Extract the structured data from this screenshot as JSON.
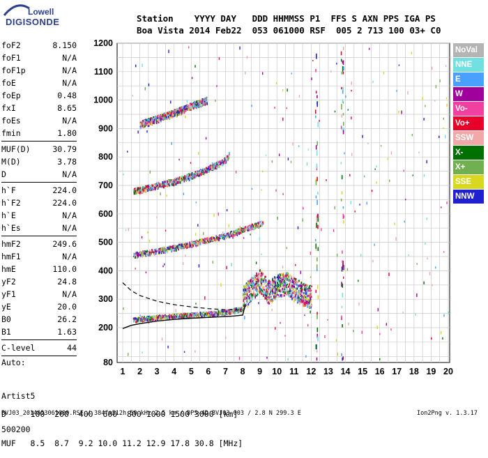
{
  "logo": {
    "line1": "Lowell",
    "line2": "DIGISONDE"
  },
  "header": {
    "row1": "Station    YYYY DAY   DDD HHMMSS P1  FFS S AXN PPS IGA PS",
    "row2": "Boa Vista 2014 Feb22  053 061000 RSF  005 2 713 100 03+ C0"
  },
  "params": [
    {
      "name": "foF2",
      "value": "8.150"
    },
    {
      "name": "foF1",
      "value": "N/A"
    },
    {
      "name": "foF1p",
      "value": "N/A"
    },
    {
      "name": "foE",
      "value": "N/A"
    },
    {
      "name": "foEp",
      "value": "0.48"
    },
    {
      "name": "fxI",
      "value": "8.65"
    },
    {
      "name": "foEs",
      "value": "N/A"
    },
    {
      "name": "fmin",
      "value": "1.80"
    },
    {
      "sep": true
    },
    {
      "name": "MUF(D)",
      "value": "30.79"
    },
    {
      "name": "M(D)",
      "value": "3.78"
    },
    {
      "name": "D",
      "value": "N/A"
    },
    {
      "sep": true
    },
    {
      "name": "h`F",
      "value": "224.0"
    },
    {
      "name": "h`F2",
      "value": "224.0"
    },
    {
      "name": "h`E",
      "value": "N/A"
    },
    {
      "name": "h`Es",
      "value": "N/A"
    },
    {
      "sep": true
    },
    {
      "name": "hmF2",
      "value": "249.6"
    },
    {
      "name": "hmF1",
      "value": "N/A"
    },
    {
      "name": "hmE",
      "value": "110.0"
    },
    {
      "name": "yF2",
      "value": "24.8"
    },
    {
      "name": "yF1",
      "value": "N/A"
    },
    {
      "name": "yE",
      "value": "20.0"
    },
    {
      "name": "B0",
      "value": "26.2"
    },
    {
      "name": "B1",
      "value": "1.63"
    },
    {
      "sep": true
    },
    {
      "name": "C-level",
      "value": "44"
    },
    {
      "sep": true
    }
  ],
  "autoscaling": {
    "line1": "Auto:",
    "line2": "Artist5",
    "line3": "500200"
  },
  "table": {
    "row1": "D     100  200  400  600  800 1000 1500 3000 [km]",
    "row2": "MUF   8.5  8.7  9.2 10.0 11.2 12.9 17.8 30.8 [MHz]"
  },
  "footer": {
    "left": "BVJ03_2014053061000.RSF / 384fx512h 50 kHz 2.5 km / DPS-4D BVJ03 003 / 2.8 N 299.3 E",
    "right": "Ion2Png v. 1.3.17"
  },
  "legend": [
    {
      "label": "NoVal",
      "color": "#b4b4b4"
    },
    {
      "label": "NNE",
      "color": "#70e0e0"
    },
    {
      "label": "E",
      "color": "#4aa0ff"
    },
    {
      "label": "W",
      "color": "#a0009c"
    },
    {
      "label": "Vo-",
      "color": "#f040a0"
    },
    {
      "label": "Vo+",
      "color": "#e8002a"
    },
    {
      "label": "SSW",
      "color": "#f0a8a8"
    },
    {
      "label": "X-",
      "color": "#007000"
    },
    {
      "label": "X+",
      "color": "#70b050"
    },
    {
      "label": "SSE",
      "color": "#d8d820"
    },
    {
      "label": "NNW",
      "color": "#2020d0"
    }
  ],
  "chart_data": {
    "type": "scatter",
    "xlabel": "",
    "ylabel": "",
    "x_ticks": [
      "1",
      "2",
      "3",
      "4",
      "5",
      "6",
      "7",
      "8",
      "9",
      "10",
      "11",
      "12",
      "13",
      "14",
      "15",
      "16",
      "17",
      "18",
      "19",
      "20"
    ],
    "y_ticks": [
      "80",
      "200",
      "300",
      "400",
      "500",
      "600",
      "700",
      "800",
      "900",
      "1000",
      "1100",
      "1200"
    ],
    "xlim": [
      1,
      20
    ],
    "ylim": [
      80,
      1200
    ],
    "grid": true,
    "traces": [
      {
        "name": "o-trace 1st hop",
        "x": [
          1.6,
          2,
          3,
          4,
          5,
          6,
          7,
          7.5,
          8
        ],
        "y": [
          228,
          232,
          238,
          242,
          246,
          250,
          256,
          262,
          268
        ]
      },
      {
        "name": "o-trace 2nd hop",
        "x": [
          1.6,
          2,
          3,
          4,
          5,
          6,
          7,
          8,
          9.2
        ],
        "y": [
          455,
          460,
          470,
          482,
          495,
          510,
          525,
          545,
          570
        ]
      },
      {
        "name": "o-trace 3rd hop",
        "x": [
          1.6,
          2,
          3,
          4,
          5,
          6,
          7,
          7.2
        ],
        "y": [
          680,
          685,
          700,
          715,
          735,
          760,
          790,
          810
        ]
      },
      {
        "name": "o-trace 4th hop",
        "x": [
          2,
          3,
          4,
          5,
          5.9
        ],
        "y": [
          915,
          935,
          955,
          980,
          1000
        ]
      },
      {
        "name": "spread F",
        "x": [
          8,
          8.5,
          9,
          9.5,
          10,
          10.5,
          11,
          11.5,
          12
        ],
        "y": [
          300,
          330,
          360,
          320,
          340,
          350,
          330,
          310,
          300
        ]
      }
    ],
    "profile_solid": {
      "x": [
        1,
        1.5,
        2,
        3,
        4,
        5,
        6,
        7,
        7.5,
        8,
        8.15
      ],
      "y": [
        197,
        208,
        214,
        223,
        229,
        233,
        236,
        239,
        241,
        244,
        280
      ]
    },
    "profile_dashed": {
      "x": [
        1,
        1.5,
        2,
        3,
        4,
        5,
        6,
        7,
        8
      ],
      "y": [
        358,
        330,
        313,
        293,
        281,
        273,
        267,
        263,
        262
      ]
    }
  }
}
